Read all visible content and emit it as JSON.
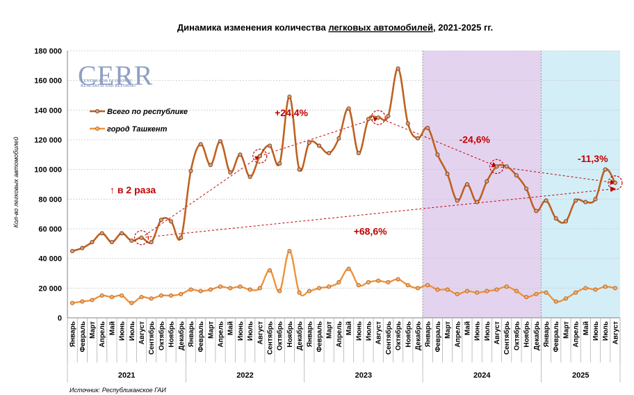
{
  "chart_data": {
    "type": "line",
    "title_parts": [
      "Динамика изменения количества ",
      "легковых автомобилей",
      ", 2021-2025 гг."
    ],
    "ylabel": "Кол-во легковых автомобилей",
    "ylim": [
      0,
      180000
    ],
    "yticks": [
      0,
      20000,
      40000,
      60000,
      80000,
      100000,
      120000,
      140000,
      160000,
      180000
    ],
    "ytick_labels": [
      "0",
      "20 000",
      "40 000",
      "60 000",
      "80 000",
      "100 000",
      "120 000",
      "140 000",
      "160 000",
      "180 000"
    ],
    "grid": "horizontal",
    "legend_position": "top-left",
    "years": [
      {
        "label": "2021",
        "start": 0,
        "count": 12
      },
      {
        "label": "2022",
        "start": 12,
        "count": 12
      },
      {
        "label": "2023",
        "start": 24,
        "count": 12
      },
      {
        "label": "2024",
        "start": 36,
        "count": 12
      },
      {
        "label": "2025",
        "start": 48,
        "count": 8
      }
    ],
    "shaded_years": [
      {
        "year": "2024",
        "color": "#e3d3ef"
      },
      {
        "year": "2025",
        "color": "#d3eef7"
      }
    ],
    "categories": [
      "Январь",
      "Февраль",
      "Март",
      "Апрель",
      "Май",
      "Июнь",
      "Июль",
      "Август",
      "Сентябрь",
      "Октябрь",
      "Ноябрь",
      "Декабрь",
      "Январь",
      "Февраль",
      "Март",
      "Апрель",
      "Май",
      "Июнь",
      "Июль",
      "Август",
      "Сентябрь",
      "Октябрь",
      "Ноябрь",
      "Декабрь",
      "Январь",
      "Февраль",
      "Март",
      "Апрель",
      "Май",
      "Июнь",
      "Июль",
      "Август",
      "Сентябрь",
      "Октябрь",
      "Ноябрь",
      "Декабрь",
      "Январь",
      "Февраль",
      "Март",
      "Апрель",
      "Май",
      "Июнь",
      "Июль",
      "Август",
      "Сентябрь",
      "Октябрь",
      "Ноябрь",
      "Декабрь",
      "Январь",
      "Февраль",
      "Март",
      "Апрель",
      "Май",
      "Июнь",
      "Июль",
      "Август"
    ],
    "series": [
      {
        "name": "Всего по республике",
        "color": "#c0601f",
        "values": [
          45000,
          47000,
          51000,
          57000,
          51000,
          57000,
          52000,
          54000,
          51000,
          66000,
          65000,
          54000,
          99000,
          117000,
          103000,
          119000,
          98000,
          110000,
          95000,
          109000,
          116000,
          104000,
          149000,
          100000,
          118000,
          116000,
          111000,
          121000,
          141000,
          111000,
          134000,
          135000,
          136000,
          168000,
          131000,
          121000,
          128000,
          110000,
          97000,
          79000,
          90000,
          78000,
          92000,
          102000,
          102000,
          96000,
          87000,
          72000,
          79000,
          67000,
          65000,
          79000,
          78000,
          80000,
          100000,
          91000
        ]
      },
      {
        "name": "город Ташкент",
        "color": "#f0913a",
        "values": [
          10000,
          11000,
          12000,
          15000,
          14000,
          15000,
          10000,
          14000,
          13000,
          15000,
          15000,
          16000,
          19000,
          18000,
          19000,
          21000,
          20000,
          21000,
          19000,
          20000,
          32000,
          18000,
          45000,
          17000,
          18000,
          20000,
          21000,
          24000,
          33000,
          22000,
          24000,
          25000,
          24000,
          26000,
          22000,
          20000,
          22000,
          19000,
          19000,
          16000,
          18000,
          17000,
          18000,
          19000,
          21000,
          18000,
          14000,
          16000,
          17000,
          11000,
          13000,
          17000,
          20000,
          19000,
          21000,
          20000
        ]
      }
    ],
    "annotations": [
      {
        "text": "↑ в 2 раза",
        "color": "#c00000",
        "anchor_index": 3.8,
        "anchor_value": 84000
      },
      {
        "text": "+24,4%",
        "color": "#c00000",
        "anchor_index": 20.5,
        "anchor_value": 136000
      },
      {
        "text": "-24,6%",
        "color": "#c00000",
        "anchor_index": 39.2,
        "anchor_value": 118000
      },
      {
        "text": "-11,3%",
        "color": "#c00000",
        "anchor_index": 51.2,
        "anchor_value": 105000
      },
      {
        "text": "+68,6%",
        "color": "#c00000",
        "anchor_index": 28.5,
        "anchor_value": 56000
      }
    ],
    "arrows": [
      {
        "from": [
          7,
          54000
        ],
        "to": [
          19,
          109000
        ]
      },
      {
        "from": [
          19,
          109000
        ],
        "to": [
          31,
          135000
        ]
      },
      {
        "from": [
          31,
          135000
        ],
        "to": [
          43,
          102000
        ]
      },
      {
        "from": [
          43,
          102000
        ],
        "to": [
          55,
          91000
        ]
      },
      {
        "from": [
          7,
          54000
        ],
        "to": [
          55,
          87000
        ]
      }
    ],
    "circled": [
      {
        "index": 7,
        "value": 54000
      },
      {
        "index": 19,
        "value": 109000
      },
      {
        "index": 31,
        "value": 135000
      },
      {
        "index": 43,
        "value": 102000
      },
      {
        "index": 55,
        "value": 91000
      }
    ]
  },
  "logo": {
    "text": "CERR",
    "subtitle_lines": [
      "CENTER FOR ECONOMIC",
      "RESEARCH AND REFORMS"
    ]
  },
  "source": "Источник: Республиканское ГАИ"
}
